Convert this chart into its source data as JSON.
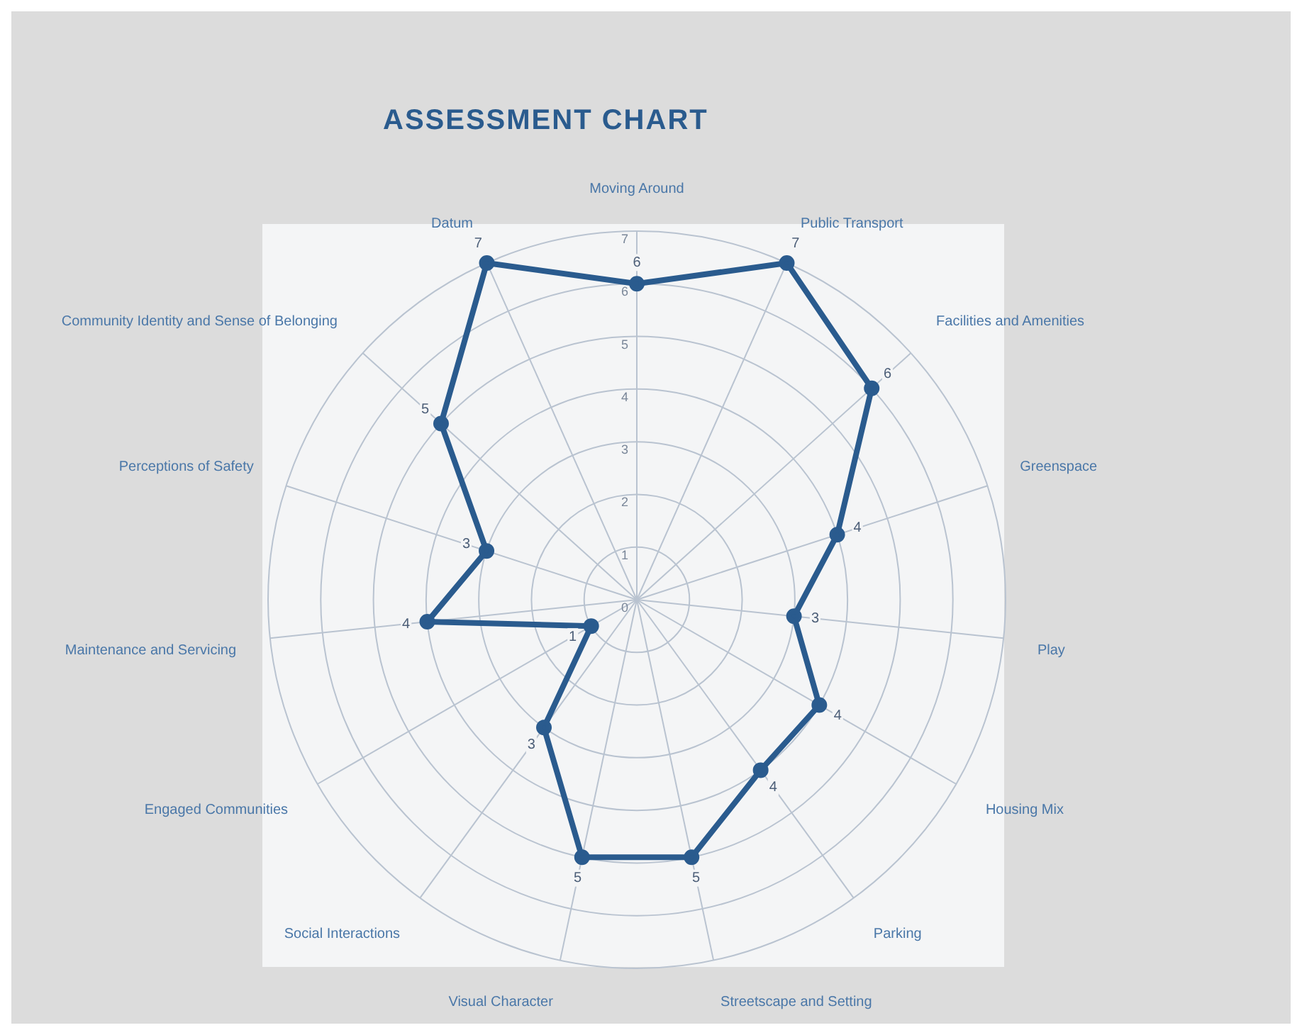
{
  "chart_data": {
    "type": "radar",
    "title": "ASSESSMENT CHART",
    "categories": [
      "Moving Around",
      "Public Transport",
      "Facilities and Amenities",
      "Greenspace",
      "Play",
      "Housing Mix",
      "Parking",
      "Streetscape and Setting",
      "Visual Character",
      "Social Interactions",
      "Engaged Communities",
      "Maintenance and Servicing",
      "Perceptions of Safety",
      "Community Identity and Sense of Belonging",
      "Datum"
    ],
    "series": [
      {
        "color": "#2a5b8e",
        "values": [
          6,
          7,
          6,
          4,
          3,
          4,
          4,
          5,
          5,
          3,
          1,
          4,
          3,
          5,
          7
        ]
      }
    ],
    "ylim": [
      0,
      7
    ],
    "yticks": [
      0,
      1,
      2,
      3,
      4,
      5,
      6,
      7
    ],
    "grid": true,
    "marker": "circle",
    "data_labels": true
  }
}
